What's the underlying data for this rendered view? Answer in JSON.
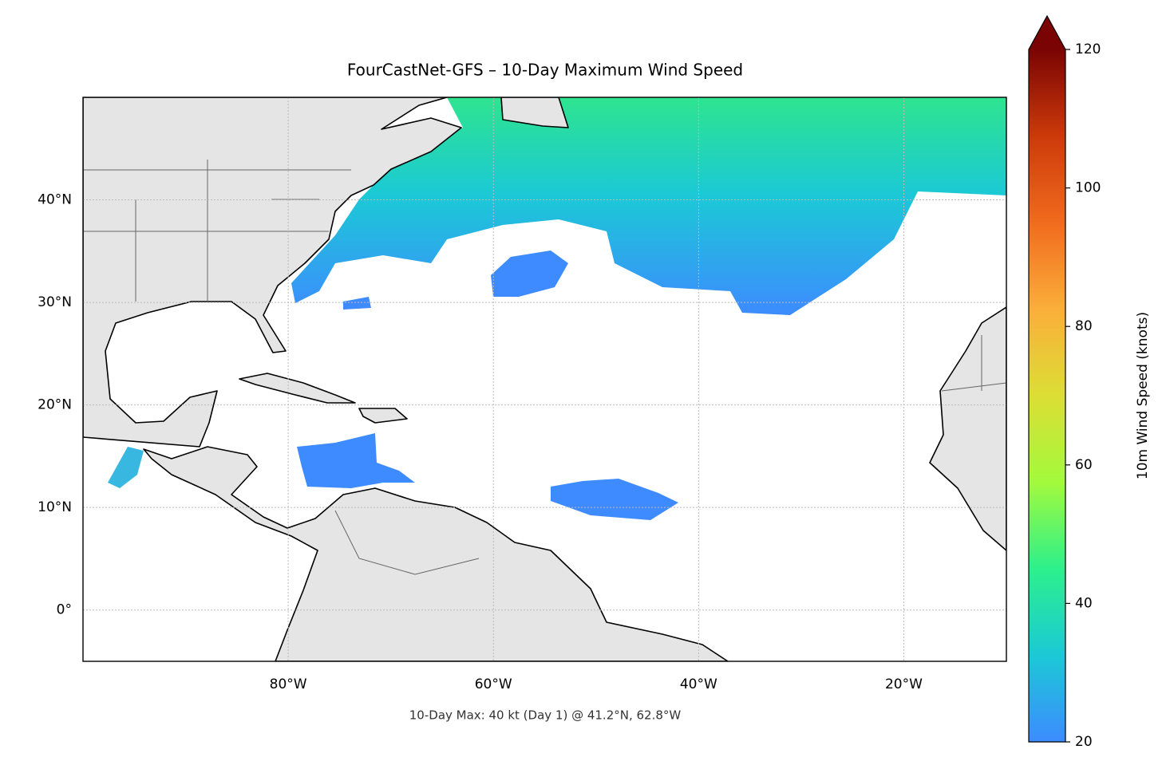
{
  "chart_data": {
    "type": "map",
    "title": "FourCastNet-GFS – 10-Day Maximum Wind Speed",
    "annotation": "10-Day Max: 40 kt (Day 1) @ 41.2°N, 62.8°W",
    "xlim": [
      -100,
      -10
    ],
    "ylim": [
      -5,
      50
    ],
    "xticks": [
      {
        "value": -80,
        "label": "80°W"
      },
      {
        "value": -60,
        "label": "60°W"
      },
      {
        "value": -40,
        "label": "40°W"
      },
      {
        "value": -20,
        "label": "20°W"
      }
    ],
    "yticks": [
      {
        "value": 0,
        "label": "0°"
      },
      {
        "value": 10,
        "label": "10°N"
      },
      {
        "value": 20,
        "label": "20°N"
      },
      {
        "value": 30,
        "label": "30°N"
      },
      {
        "value": 40,
        "label": "40°N"
      }
    ],
    "grid": true,
    "colorbar": {
      "label": "10m Wind Speed (knots)",
      "lim": [
        20,
        120
      ],
      "ticks": [
        20,
        40,
        60,
        80,
        100,
        120
      ],
      "colors": [
        "#3d8bff",
        "#1bc9d6",
        "#2cf08c",
        "#a3fa3c",
        "#dcde35",
        "#fbae3a",
        "#f16b1e",
        "#cc3a0a",
        "#7a0403"
      ]
    }
  }
}
